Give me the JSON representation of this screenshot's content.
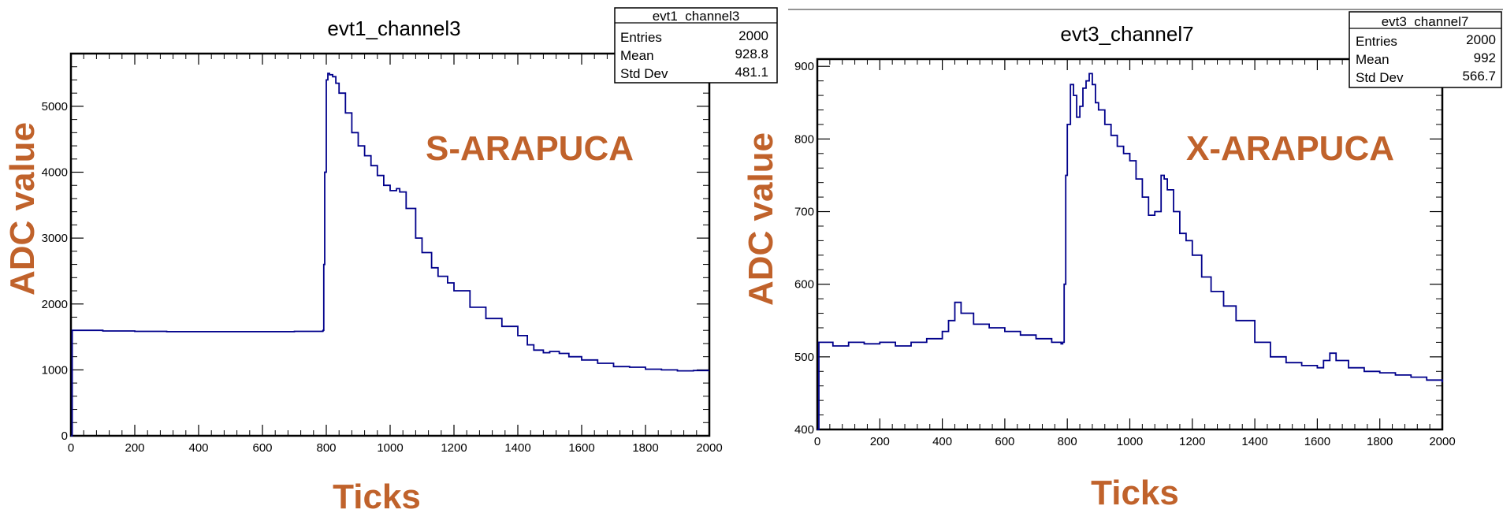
{
  "chart_data": [
    {
      "type": "line",
      "title": "evt1_channel3",
      "xlabel": "Ticks",
      "ylabel": "ADC value",
      "annotation": "S-ARAPUCA",
      "xlim": [
        0,
        2000
      ],
      "ylim": [
        0,
        5800
      ],
      "x_ticks": [
        0,
        200,
        400,
        600,
        800,
        1000,
        1200,
        1400,
        1600,
        1800,
        2000
      ],
      "y_ticks": [
        0,
        1000,
        2000,
        3000,
        4000,
        5000
      ],
      "stats": {
        "title": "evt1_channel3",
        "rows": [
          {
            "label": "Entries",
            "value": "2000"
          },
          {
            "label": "Mean",
            "value": "928.8"
          },
          {
            "label": "Std Dev",
            "value": "481.1"
          }
        ]
      },
      "series": [
        {
          "color": "#00008b",
          "points": [
            [
              0,
              0
            ],
            [
              3,
              0
            ],
            [
              4,
              1600
            ],
            [
              100,
              1590
            ],
            [
              200,
              1585
            ],
            [
              300,
              1580
            ],
            [
              400,
              1580
            ],
            [
              500,
              1580
            ],
            [
              600,
              1580
            ],
            [
              700,
              1585
            ],
            [
              789,
              1590
            ],
            [
              790,
              1600
            ],
            [
              792,
              2600
            ],
            [
              795,
              4000
            ],
            [
              800,
              5400
            ],
            [
              805,
              5500
            ],
            [
              810,
              5480
            ],
            [
              820,
              5450
            ],
            [
              830,
              5350
            ],
            [
              840,
              5200
            ],
            [
              860,
              4900
            ],
            [
              880,
              4600
            ],
            [
              900,
              4400
            ],
            [
              920,
              4250
            ],
            [
              940,
              4100
            ],
            [
              960,
              3950
            ],
            [
              980,
              3800
            ],
            [
              1000,
              3720
            ],
            [
              1020,
              3750
            ],
            [
              1030,
              3700
            ],
            [
              1050,
              3450
            ],
            [
              1080,
              3000
            ],
            [
              1100,
              2780
            ],
            [
              1130,
              2550
            ],
            [
              1150,
              2420
            ],
            [
              1180,
              2320
            ],
            [
              1200,
              2200
            ],
            [
              1250,
              1950
            ],
            [
              1300,
              1780
            ],
            [
              1350,
              1660
            ],
            [
              1400,
              1520
            ],
            [
              1430,
              1380
            ],
            [
              1450,
              1300
            ],
            [
              1480,
              1260
            ],
            [
              1500,
              1280
            ],
            [
              1530,
              1250
            ],
            [
              1560,
              1200
            ],
            [
              1600,
              1150
            ],
            [
              1650,
              1100
            ],
            [
              1700,
              1050
            ],
            [
              1750,
              1040
            ],
            [
              1800,
              1010
            ],
            [
              1850,
              1000
            ],
            [
              1900,
              985
            ],
            [
              1950,
              990
            ],
            [
              2000,
              990
            ]
          ]
        }
      ]
    },
    {
      "type": "line",
      "title": "evt3_channel7",
      "xlabel": "Ticks",
      "ylabel": "ADC value",
      "annotation": "X-ARAPUCA",
      "xlim": [
        0,
        2000
      ],
      "ylim": [
        400,
        910
      ],
      "x_ticks": [
        0,
        200,
        400,
        600,
        800,
        1000,
        1200,
        1400,
        1600,
        1800,
        2000
      ],
      "y_ticks": [
        400,
        500,
        600,
        700,
        800,
        900
      ],
      "stats": {
        "title": "evt3_channel7",
        "rows": [
          {
            "label": "Entries",
            "value": "2000"
          },
          {
            "label": "Mean",
            "value": "992"
          },
          {
            "label": "Std Dev",
            "value": "566.7"
          }
        ]
      },
      "series": [
        {
          "color": "#00008b",
          "points": [
            [
              0,
              400
            ],
            [
              3,
              400
            ],
            [
              5,
              520
            ],
            [
              50,
              515
            ],
            [
              100,
              520
            ],
            [
              150,
              518
            ],
            [
              200,
              520
            ],
            [
              250,
              515
            ],
            [
              300,
              520
            ],
            [
              350,
              525
            ],
            [
              400,
              535
            ],
            [
              420,
              550
            ],
            [
              440,
              575
            ],
            [
              460,
              560
            ],
            [
              500,
              545
            ],
            [
              550,
              540
            ],
            [
              600,
              535
            ],
            [
              650,
              530
            ],
            [
              700,
              525
            ],
            [
              750,
              520
            ],
            [
              780,
              518
            ],
            [
              785,
              520
            ],
            [
              790,
              600
            ],
            [
              795,
              750
            ],
            [
              800,
              820
            ],
            [
              810,
              875
            ],
            [
              820,
              860
            ],
            [
              830,
              830
            ],
            [
              840,
              845
            ],
            [
              850,
              870
            ],
            [
              860,
              880
            ],
            [
              870,
              890
            ],
            [
              880,
              875
            ],
            [
              890,
              850
            ],
            [
              900,
              840
            ],
            [
              920,
              820
            ],
            [
              940,
              805
            ],
            [
              960,
              790
            ],
            [
              980,
              780
            ],
            [
              1000,
              770
            ],
            [
              1020,
              745
            ],
            [
              1040,
              720
            ],
            [
              1060,
              695
            ],
            [
              1080,
              700
            ],
            [
              1100,
              750
            ],
            [
              1110,
              745
            ],
            [
              1120,
              730
            ],
            [
              1140,
              700
            ],
            [
              1160,
              670
            ],
            [
              1180,
              660
            ],
            [
              1200,
              640
            ],
            [
              1230,
              610
            ],
            [
              1260,
              590
            ],
            [
              1300,
              570
            ],
            [
              1340,
              550
            ],
            [
              1400,
              520
            ],
            [
              1450,
              500
            ],
            [
              1500,
              492
            ],
            [
              1550,
              488
            ],
            [
              1600,
              485
            ],
            [
              1620,
              495
            ],
            [
              1640,
              505
            ],
            [
              1660,
              495
            ],
            [
              1700,
              485
            ],
            [
              1750,
              480
            ],
            [
              1800,
              478
            ],
            [
              1850,
              475
            ],
            [
              1900,
              472
            ],
            [
              1950,
              468
            ],
            [
              2000,
              465
            ]
          ]
        }
      ]
    }
  ]
}
